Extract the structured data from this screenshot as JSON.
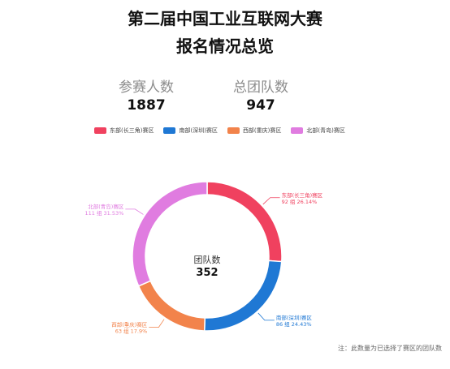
{
  "header": {
    "title_line1": "第二届中国工业互联网大赛",
    "title_line2": "报名情况总览"
  },
  "stats": [
    {
      "label": "参赛人数",
      "value": "1887"
    },
    {
      "label": "总团队数",
      "value": "947"
    }
  ],
  "note": "注：此数量为已选择了赛区的团队数",
  "chart_data": {
    "type": "pie",
    "donut": true,
    "center_label": "团队数",
    "center_value": "352",
    "legend_position": "top",
    "series": [
      {
        "name": "东部(长三角)赛区",
        "value": 92,
        "label": "92 组 26.14%",
        "color": "#f0415f"
      },
      {
        "name": "南部(深圳)赛区",
        "value": 86,
        "label": "86 组 24.43%",
        "color": "#1f78d4"
      },
      {
        "name": "西部(重庆)赛区",
        "value": 63,
        "label": "63 组 17.9%",
        "color": "#f2834b"
      },
      {
        "name": "北部(青岛)赛区",
        "value": 111,
        "label": "111 组 31.53%",
        "color": "#e07ce0"
      }
    ]
  }
}
